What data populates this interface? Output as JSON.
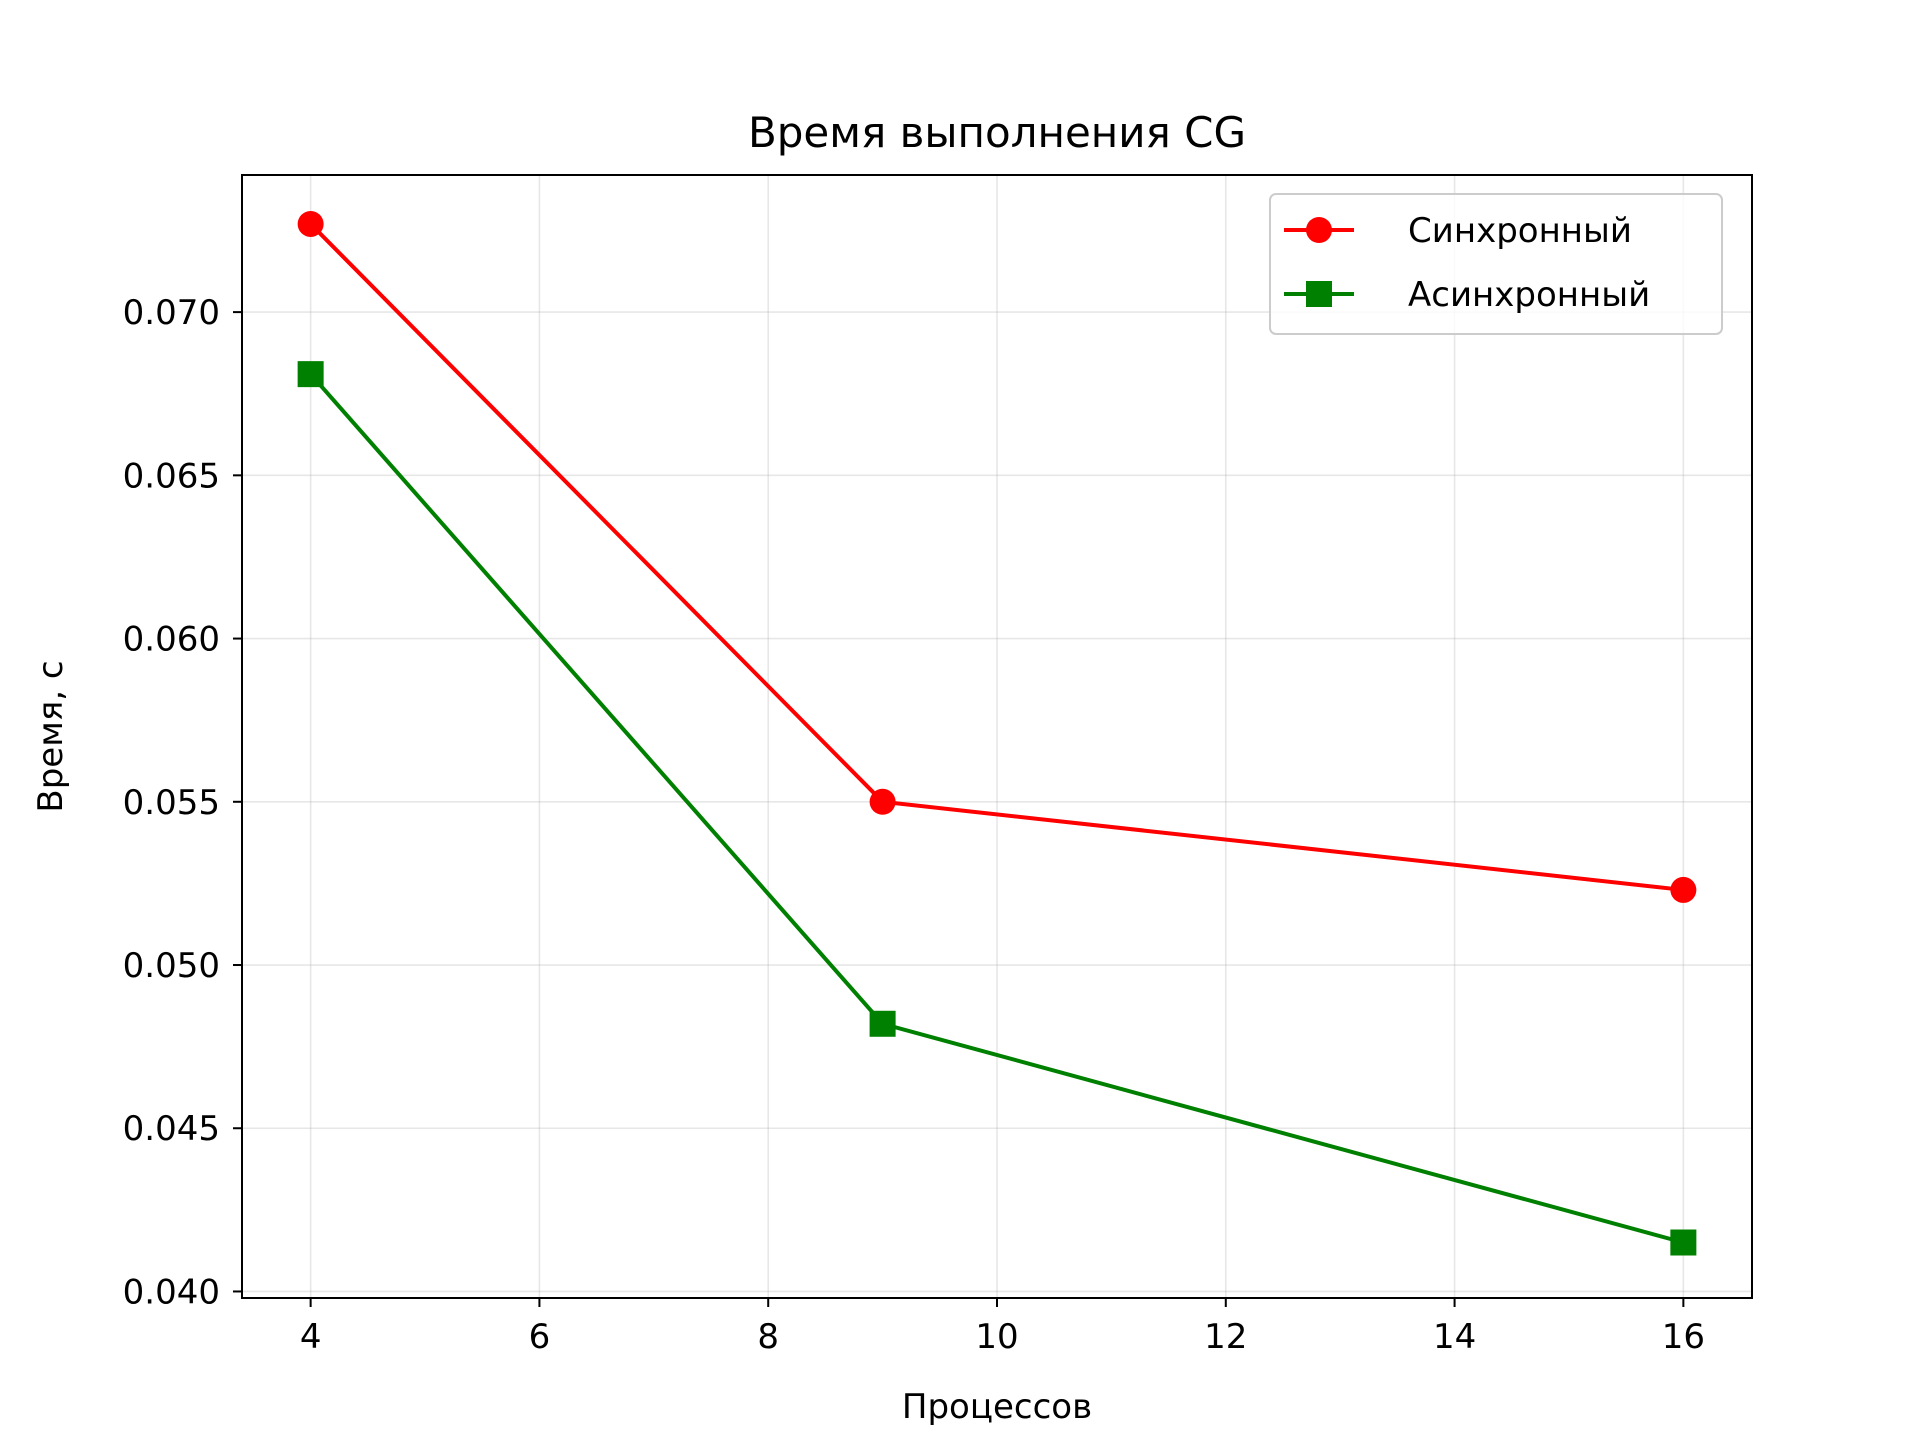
{
  "chart_data": {
    "type": "line",
    "title": "Время выполнения CG",
    "xlabel": "Процессов",
    "ylabel": "Время, с",
    "xlim": [
      3.4,
      16.6
    ],
    "ylim": [
      0.0398,
      0.0742
    ],
    "xticks": [
      4,
      6,
      8,
      10,
      12,
      14,
      16
    ],
    "yticks": [
      0.04,
      0.045,
      0.05,
      0.055,
      0.06,
      0.065,
      0.07
    ],
    "ytick_labels": [
      "0.040",
      "0.045",
      "0.050",
      "0.055",
      "0.060",
      "0.065",
      "0.070"
    ],
    "grid": true,
    "legend_position": "top-right",
    "x": [
      4,
      9,
      16
    ],
    "series": [
      {
        "name": "Синхронный",
        "values": [
          0.0727,
          0.055,
          0.0523
        ],
        "color": "#ff0000",
        "marker": "circle"
      },
      {
        "name": "Асинхронный",
        "values": [
          0.0681,
          0.0482,
          0.0415
        ],
        "color": "#008000",
        "marker": "square"
      }
    ]
  }
}
